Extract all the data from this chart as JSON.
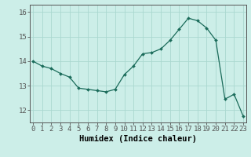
{
  "x": [
    0,
    1,
    2,
    3,
    4,
    5,
    6,
    7,
    8,
    9,
    10,
    11,
    12,
    13,
    14,
    15,
    16,
    17,
    18,
    19,
    20,
    21,
    22,
    23
  ],
  "y": [
    14.0,
    13.8,
    13.7,
    13.5,
    13.35,
    12.9,
    12.85,
    12.8,
    12.75,
    12.85,
    13.45,
    13.8,
    14.3,
    14.35,
    14.5,
    14.85,
    15.3,
    15.75,
    15.65,
    15.35,
    14.85,
    12.45,
    12.65,
    11.75
  ],
  "line_color": "#1a6b5a",
  "marker": "D",
  "marker_size": 2.0,
  "bg_color": "#cceee8",
  "grid_color": "#aad8d0",
  "axis_color": "#555555",
  "xlabel": "Humidex (Indice chaleur)",
  "xlabel_fontsize": 7.5,
  "xlabel_fontweight": "bold",
  "tick_fontsize": 6.5,
  "ylim": [
    11.5,
    16.3
  ],
  "yticks": [
    12,
    13,
    14,
    15
  ],
  "ytick_labels": [
    "12",
    "13",
    "14",
    "15"
  ],
  "yextra_tick": 16,
  "xticks": [
    0,
    1,
    2,
    3,
    4,
    5,
    6,
    7,
    8,
    9,
    10,
    11,
    12,
    13,
    14,
    15,
    16,
    17,
    18,
    19,
    20,
    21,
    22,
    23
  ],
  "xlim": [
    -0.3,
    23.3
  ]
}
